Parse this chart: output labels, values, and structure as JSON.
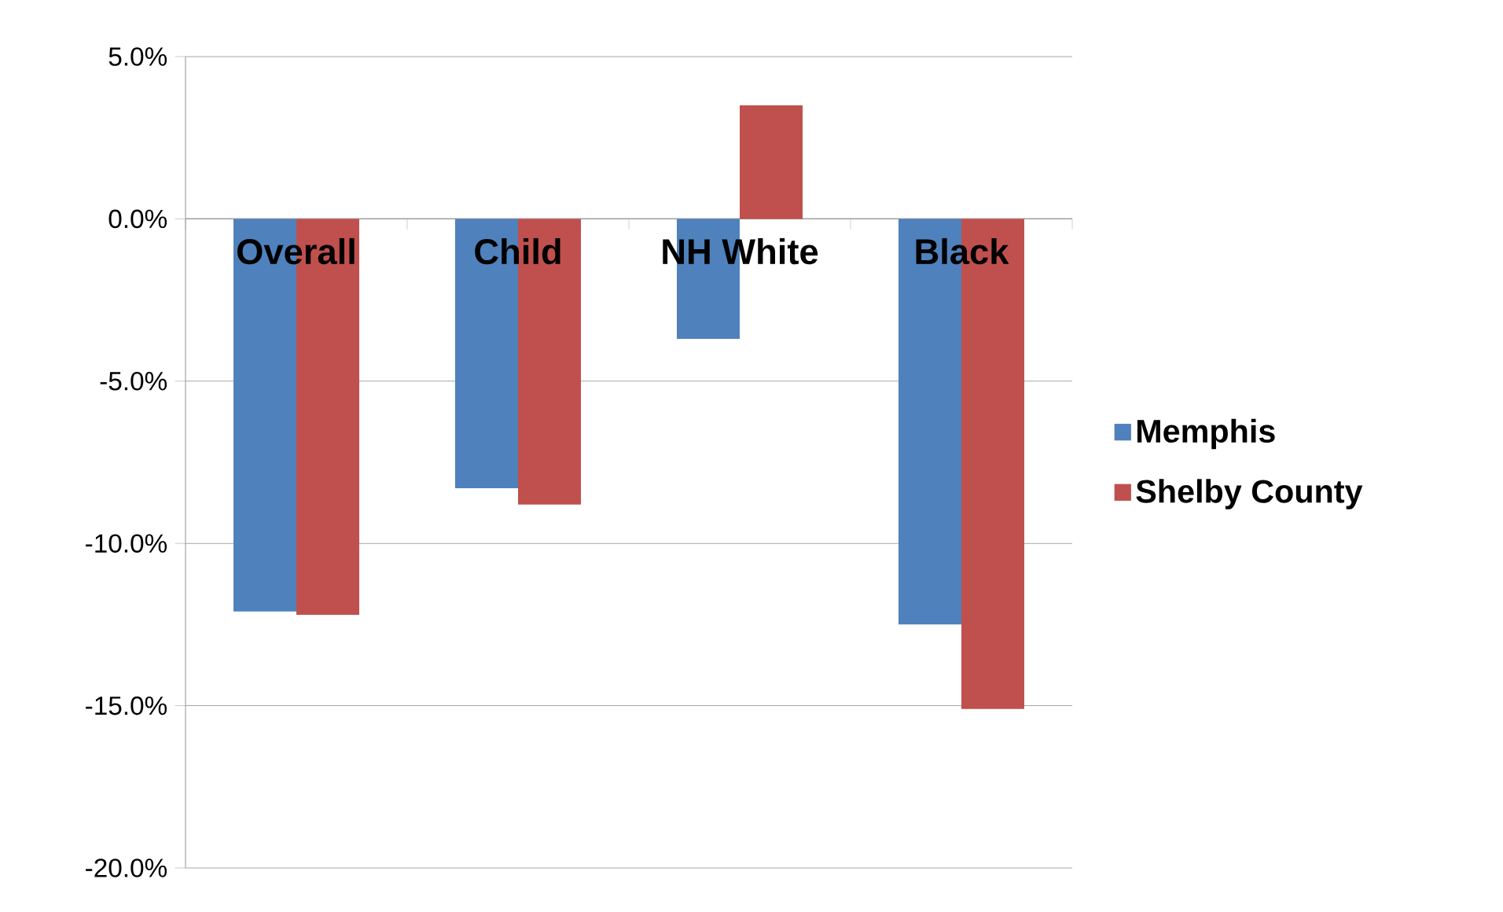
{
  "chart_data": {
    "type": "bar",
    "categories": [
      "Overall",
      "Child",
      "NH White",
      "Black"
    ],
    "series": [
      {
        "name": "Memphis",
        "color": "#4f81bd",
        "values": [
          -12.1,
          -8.3,
          -3.7,
          -12.5
        ]
      },
      {
        "name": "Shelby County",
        "color": "#c0504d",
        "values": [
          -12.2,
          -8.8,
          3.5,
          -15.1
        ]
      }
    ],
    "ylim": [
      -20,
      5
    ],
    "yticks": [
      {
        "value": -20,
        "label": "-20.0%"
      },
      {
        "value": -15,
        "label": "-15.0%"
      },
      {
        "value": -10,
        "label": "-10.0%"
      },
      {
        "value": -5,
        "label": "-5.0%"
      },
      {
        "value": 0,
        "label": "0.0%"
      },
      {
        "value": 5,
        "label": "5.0%"
      }
    ],
    "grid": "y",
    "legend": "right"
  }
}
